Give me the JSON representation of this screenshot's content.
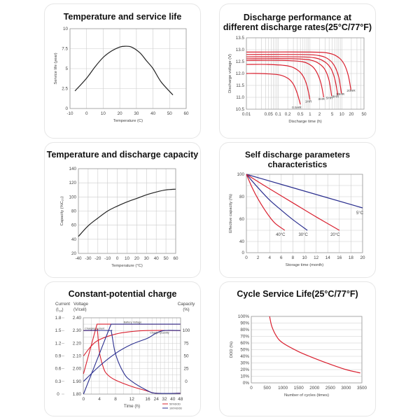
{
  "colors": {
    "red": "#d9202f",
    "blue": "#2b2f8f",
    "black": "#222222",
    "grid": "#cccccc"
  },
  "chart_data": [
    {
      "type": "line",
      "title": "Temperature and service life",
      "xlabel": "Temperature (C)",
      "ylabel": "Service life (year)",
      "xlim": [
        -10,
        60
      ],
      "ylim": [
        0,
        10
      ],
      "grid": true,
      "x_ticks": [
        "-10",
        "0",
        "10",
        "20",
        "30",
        "40",
        "50",
        "60"
      ],
      "y_ticks": [
        "0",
        "2.5",
        "5",
        "7.5",
        "10"
      ],
      "series": [
        {
          "color": "#222222",
          "points": [
            [
              -7,
              2.2
            ],
            [
              0,
              3.8
            ],
            [
              5,
              5.2
            ],
            [
              10,
              6.4
            ],
            [
              15,
              7.2
            ],
            [
              20,
              7.7
            ],
            [
              23,
              7.8
            ],
            [
              27,
              7.7
            ],
            [
              32,
              7.0
            ],
            [
              36,
              6.0
            ],
            [
              40,
              5.0
            ],
            [
              45,
              3.3
            ],
            [
              52,
              1.7
            ]
          ]
        }
      ]
    },
    {
      "type": "line",
      "title": "Discharge performance at",
      "title2": "different discharge rates(25°C/77°F)",
      "xlabel": "Discharge time (h)",
      "ylabel": "Discharge voltage (V)",
      "xscale": "log",
      "xlim": [
        0.01,
        50
      ],
      "ylim": [
        10.5,
        13.5
      ],
      "grid": true,
      "x_ticks": [
        "0.01",
        "0.05",
        "0.1",
        "0.2",
        "0.5",
        "1",
        "2",
        "5",
        "10",
        "20",
        "50"
      ],
      "y_ticks": [
        "10.5",
        "11.0",
        "11.5",
        "12.0",
        "12.5",
        "13.0",
        "13.5"
      ],
      "series": [
        {
          "name": "0.5HR",
          "color": "#d9202f",
          "points": [
            [
              0.01,
              12.0
            ],
            [
              0.025,
              12.0
            ],
            [
              0.1,
              11.95
            ],
            [
              0.2,
              11.8
            ],
            [
              0.3,
              11.55
            ],
            [
              0.4,
              11.15
            ],
            [
              0.5,
              10.7
            ]
          ]
        },
        {
          "name": "1HR",
          "color": "#d9202f",
          "points": [
            [
              0.01,
              12.38
            ],
            [
              0.05,
              12.38
            ],
            [
              0.2,
              12.32
            ],
            [
              0.4,
              12.15
            ],
            [
              0.6,
              11.9
            ],
            [
              0.8,
              11.5
            ],
            [
              1,
              10.9
            ]
          ]
        },
        {
          "name": "3HR",
          "color": "#d9202f",
          "points": [
            [
              0.01,
              12.55
            ],
            [
              0.13,
              12.55
            ],
            [
              0.55,
              12.5
            ],
            [
              1.1,
              12.33
            ],
            [
              1.6,
              12.07
            ],
            [
              2.2,
              11.6
            ],
            [
              2.7,
              11.0
            ]
          ]
        },
        {
          "name": "5HR",
          "color": "#d9202f",
          "points": [
            [
              0.01,
              12.62
            ],
            [
              0.25,
              12.62
            ],
            [
              1,
              12.57
            ],
            [
              2,
              12.4
            ],
            [
              3,
              12.15
            ],
            [
              4,
              11.7
            ],
            [
              4.8,
              11.05
            ]
          ]
        },
        {
          "name": "8HR",
          "color": "#d9202f",
          "points": [
            [
              0.01,
              12.7
            ],
            [
              0.4,
              12.7
            ],
            [
              1.5,
              12.65
            ],
            [
              3,
              12.48
            ],
            [
              4.5,
              12.22
            ],
            [
              6,
              11.78
            ],
            [
              7.5,
              11.1
            ]
          ]
        },
        {
          "name": "10HR",
          "color": "#d9202f",
          "points": [
            [
              0.01,
              12.8
            ],
            [
              0.5,
              12.8
            ],
            [
              2,
              12.75
            ],
            [
              4,
              12.58
            ],
            [
              6,
              12.3
            ],
            [
              8,
              11.85
            ],
            [
              9.8,
              11.15
            ]
          ]
        },
        {
          "name": "20HR",
          "color": "#d9202f",
          "points": [
            [
              0.01,
              12.9
            ],
            [
              1,
              12.9
            ],
            [
              4,
              12.85
            ],
            [
              8,
              12.67
            ],
            [
              12,
              12.38
            ],
            [
              16,
              11.92
            ],
            [
              19.5,
              11.3
            ]
          ]
        }
      ]
    },
    {
      "type": "line",
      "title": "Temperature and discharge capacity",
      "xlabel": "Temperature (°C)",
      "ylabel": "Capacity (%C₂₀)",
      "xlim": [
        -40,
        60
      ],
      "ylim": [
        20,
        140
      ],
      "grid": true,
      "x_ticks": [
        "-40",
        "-30",
        "-20",
        "-10",
        "0",
        "10",
        "20",
        "30",
        "40",
        "50",
        "60"
      ],
      "y_ticks": [
        "20",
        "40",
        "60",
        "80",
        "100",
        "120",
        "140"
      ],
      "series": [
        {
          "color": "#222222",
          "points": [
            [
              -40,
              44
            ],
            [
              -30,
              59
            ],
            [
              -20,
              70
            ],
            [
              -10,
              80
            ],
            [
              0,
              87
            ],
            [
              10,
              93
            ],
            [
              20,
              98
            ],
            [
              30,
              103
            ],
            [
              40,
              107
            ],
            [
              50,
              110
            ],
            [
              60,
              111
            ]
          ]
        }
      ]
    },
    {
      "type": "line",
      "title": "Self discharge parameters characteristics",
      "xlabel": "Storage time (month)",
      "ylabel": "Effective capacity (%)",
      "xlim": [
        0,
        20
      ],
      "grid": true,
      "x_ticks": [
        "0",
        "2",
        "4",
        "6",
        "8",
        "10",
        "12",
        "14",
        "16",
        "18",
        "20"
      ],
      "y_ticks": [
        "0",
        "40",
        "60",
        "80",
        "100"
      ],
      "series": [
        {
          "name": "5°C",
          "color": "#2b2f8f",
          "points": [
            [
              0,
              100
            ],
            [
              10,
              85
            ],
            [
              20,
              70
            ]
          ]
        },
        {
          "name": "20°C",
          "color": "#d9202f",
          "points": [
            [
              0,
              100
            ],
            [
              4,
              87
            ],
            [
              8,
              74.5
            ],
            [
              12,
              62
            ],
            [
              16,
              50
            ]
          ]
        },
        {
          "name": "30°C",
          "color": "#2b2f8f",
          "points": [
            [
              0,
              100
            ],
            [
              2,
              88
            ],
            [
              4,
              77
            ],
            [
              6,
              68
            ],
            [
              8,
              59.5
            ],
            [
              10.5,
              50
            ]
          ]
        },
        {
          "name": "40°C",
          "color": "#d9202f",
          "points": [
            [
              0,
              100
            ],
            [
              1,
              88
            ],
            [
              2,
              78
            ],
            [
              3,
              69.5
            ],
            [
              4,
              62
            ],
            [
              5,
              56
            ],
            [
              6.6,
              50
            ]
          ]
        }
      ]
    },
    {
      "type": "line",
      "title": "Constant-potential charge",
      "xlabel": "Time (h)",
      "axis_current": {
        "label": "Current",
        "unit": "(I",
        "unit_sub": "CA",
        "unit_end": ")",
        "ticks": [
          "0",
          "0.3",
          "0.6",
          "0.9",
          "1.2",
          "1.5",
          "1.8"
        ]
      },
      "axis_voltage": {
        "label": "Voltage",
        "unit": "(V/cell)",
        "ticks": [
          "1.80",
          "1.90",
          "2.00",
          "2.10",
          "2.20",
          "2.30",
          "2.40"
        ]
      },
      "axis_capacity": {
        "label": "Capacity",
        "unit": "(%)",
        "ticks": [
          "0",
          "25",
          "50",
          "75",
          "100"
        ]
      },
      "x_ticks": [
        "0",
        "4",
        "8",
        "12",
        "16",
        "24",
        "32",
        "40",
        "48"
      ],
      "grid": true,
      "annotations": [
        {
          "text": "Battery Voltage",
          "x": 10,
          "y": 2.36
        },
        {
          "text": "Charging current",
          "x": 0.3,
          "y": 2.31
        },
        {
          "text": "Charge Quantity",
          "x": 18,
          "y": 2.275
        }
      ],
      "legend": [
        {
          "name": "50%DOD",
          "color": "#d9202f"
        },
        {
          "name": "100%DOD",
          "color": "#2b2f8f"
        }
      ],
      "series": [
        {
          "group": "50%DOD",
          "axis": "current",
          "color": "#d9202f",
          "points": [
            [
              0,
              1.5
            ],
            [
              3.2,
              1.5
            ],
            [
              3.5,
              1.5
            ],
            [
              4,
              1.0
            ],
            [
              5,
              0.62
            ],
            [
              6,
              0.46
            ],
            [
              8,
              0.33
            ],
            [
              12,
              0.18
            ],
            [
              16,
              0.07
            ],
            [
              24,
              0.02
            ],
            [
              48,
              0.02
            ]
          ]
        },
        {
          "group": "50%DOD",
          "axis": "voltage",
          "color": "#d9202f",
          "points": [
            [
              0,
              1.96
            ],
            [
              3.4,
              2.35
            ],
            [
              48,
              2.35
            ]
          ]
        },
        {
          "group": "50%DOD",
          "axis": "capacity",
          "color": "#d9202f",
          "points": [
            [
              0,
              50
            ],
            [
              2,
              70
            ],
            [
              4,
              82
            ],
            [
              8,
              93
            ],
            [
              12,
              98
            ],
            [
              16,
              100
            ],
            [
              48,
              100
            ]
          ]
        },
        {
          "group": "100%DOD",
          "axis": "current",
          "color": "#2b2f8f",
          "points": [
            [
              0,
              1.5
            ],
            [
              6.5,
              1.5
            ],
            [
              7,
              1.45
            ],
            [
              8,
              0.95
            ],
            [
              10,
              0.5
            ],
            [
              12,
              0.3
            ],
            [
              16,
              0.08
            ],
            [
              24,
              0.02
            ],
            [
              48,
              0.02
            ]
          ]
        },
        {
          "group": "100%DOD",
          "axis": "voltage",
          "color": "#2b2f8f",
          "points": [
            [
              0,
              1.8
            ],
            [
              6.9,
              2.35
            ],
            [
              48,
              2.35
            ]
          ]
        },
        {
          "group": "100%DOD",
          "axis": "capacity",
          "color": "#2b2f8f",
          "points": [
            [
              0,
              0
            ],
            [
              4,
              30
            ],
            [
              8,
              55
            ],
            [
              12,
              73
            ],
            [
              16,
              85
            ],
            [
              24,
              95
            ],
            [
              32,
              100
            ],
            [
              48,
              100
            ]
          ]
        }
      ]
    },
    {
      "type": "line",
      "title": "Cycle Service Life(25°C/77°F)",
      "xlabel": "Number of cycles (times)",
      "ylabel": "DOD (%)",
      "xlim": [
        0,
        3500
      ],
      "ylim": [
        0,
        100
      ],
      "grid": true,
      "x_ticks": [
        "0",
        "500",
        "1000",
        "1500",
        "2000",
        "2500",
        "3000",
        "3500"
      ],
      "y_ticks": [
        "0%",
        "10%",
        "20%",
        "30%",
        "40%",
        "50%",
        "60%",
        "70%",
        "80%",
        "90%",
        "100%"
      ],
      "series": [
        {
          "color": "#d9202f",
          "points": [
            [
              580,
              100
            ],
            [
              650,
              85
            ],
            [
              800,
              70
            ],
            [
              1000,
              60
            ],
            [
              1500,
              47
            ],
            [
              2000,
              37
            ],
            [
              2500,
              28
            ],
            [
              3000,
              20
            ],
            [
              3450,
              15
            ]
          ]
        }
      ]
    }
  ]
}
